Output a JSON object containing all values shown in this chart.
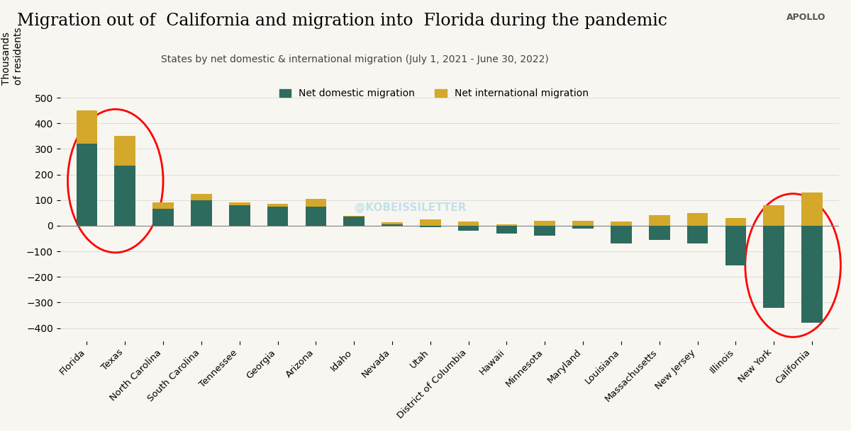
{
  "title": "Migration out of  California and migration into  Florida during the pandemic",
  "subtitle": "States by net domestic & international migration (July 1, 2021 - June 30, 2022)",
  "ylabel": "Thousands\nof residents",
  "watermark": "@KOBEISSILETTER",
  "apollo_label": "APOLLO",
  "categories": [
    "Florida",
    "Texas",
    "North Carolina",
    "South Carolina",
    "Tennessee",
    "Georgia",
    "Arizona",
    "Idaho",
    "Nevada",
    "Utah",
    "District of Columbia",
    "Hawaii",
    "Minnesota",
    "Maryland",
    "Louisiana",
    "Massachusetts",
    "New Jersey",
    "Illinois",
    "New York",
    "California"
  ],
  "domestic": [
    320,
    235,
    65,
    100,
    80,
    75,
    75,
    35,
    5,
    -5,
    -20,
    -30,
    -40,
    -10,
    -70,
    -55,
    -70,
    -155,
    -320,
    -380
  ],
  "international": [
    130,
    115,
    25,
    25,
    10,
    10,
    30,
    3,
    8,
    25,
    15,
    5,
    20,
    20,
    15,
    40,
    50,
    30,
    80,
    130
  ],
  "domestic_color": "#2d6b5e",
  "international_color": "#d4a82a",
  "background_color": "#f8f6f1",
  "ylim": [
    -450,
    550
  ],
  "yticks": [
    -400,
    -300,
    -200,
    -100,
    0,
    100,
    200,
    300,
    400,
    500
  ]
}
